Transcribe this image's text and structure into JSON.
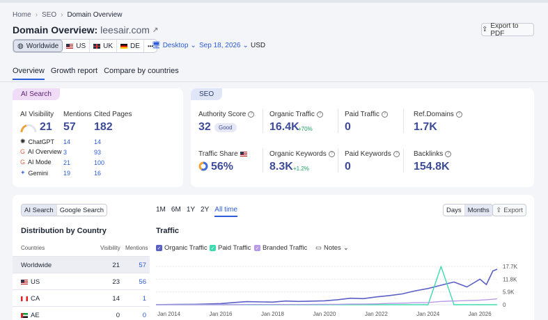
{
  "breadcrumb": [
    "Home",
    "SEO",
    "Domain Overview"
  ],
  "header": {
    "title_prefix": "Domain Overview:",
    "domain": "leesair.com",
    "export_pdf": "Export to PDF"
  },
  "databases": {
    "worldwide": "Worldwide",
    "us": "US",
    "uk": "UK",
    "de": "DE",
    "more": "•••"
  },
  "device": "Desktop",
  "date": "Sep 18, 2026",
  "currency": "USD",
  "tabs": [
    "Overview",
    "Growth report",
    "Compare by countries"
  ],
  "ai_card": {
    "badge": "AI Search",
    "visibility_label": "AI Visibility",
    "visibility_value": "21",
    "mentions_label": "Mentions",
    "mentions_value": "57",
    "cited_label": "Cited Pages",
    "cited_value": "182",
    "platforms": [
      {
        "name": "ChatGPT",
        "mentions": "14",
        "cited": "14"
      },
      {
        "name": "AI Overview",
        "mentions": "3",
        "cited": "93"
      },
      {
        "name": "AI Mode",
        "mentions": "21",
        "cited": "100"
      },
      {
        "name": "Gemini",
        "mentions": "19",
        "cited": "16"
      }
    ]
  },
  "seo_card": {
    "badge": "SEO",
    "authority_label": "Authority Score",
    "authority_value": "32",
    "authority_pill": "Good",
    "organic_traffic_label": "Organic Traffic",
    "organic_traffic_value": "16.4K",
    "organic_traffic_change": "+70%",
    "paid_traffic_label": "Paid Traffic",
    "paid_traffic_value": "0",
    "ref_domains_label": "Ref.Domains",
    "ref_domains_value": "1.7K",
    "traffic_share_label": "Traffic Share",
    "traffic_share_value": "56%",
    "organic_keywords_label": "Organic Keywords",
    "organic_keywords_value": "8.3K",
    "organic_keywords_change": "+1.2%",
    "paid_keywords_label": "Paid Keywords",
    "paid_keywords_value": "0",
    "backlinks_label": "Backlinks",
    "backlinks_value": "154.8K"
  },
  "bottom": {
    "source_toggle": [
      "AI Search",
      "Google Search"
    ],
    "time_ranges": [
      "1M",
      "6M",
      "1Y",
      "2Y",
      "All time"
    ],
    "granularity": [
      "Days",
      "Months"
    ],
    "export": "Export",
    "distribution_title": "Distribution by Country",
    "table_headers": [
      "Countries",
      "Visibility",
      "Mentions"
    ],
    "rows": [
      {
        "country": "Worldwide",
        "visibility": "21",
        "mentions": "57"
      },
      {
        "country": "US",
        "visibility": "23",
        "mentions": "56"
      },
      {
        "country": "CA",
        "visibility": "14",
        "mentions": "1"
      },
      {
        "country": "AE",
        "visibility": "0",
        "mentions": "0"
      }
    ],
    "traffic_title": "Traffic",
    "legend": [
      "Organic Traffic",
      "Paid Traffic",
      "Branded Traffic"
    ],
    "notes": "Notes"
  },
  "colors": {
    "organic": "#5b5fc7",
    "paid": "#3ddbb0",
    "branded": "#b79ae8",
    "accent": "#2b5bd7"
  },
  "chart_data": {
    "type": "line",
    "x_ticks": [
      "Jan 2014",
      "Jan 2016",
      "Jan 2018",
      "Jan 2020",
      "Jan 2022",
      "Jan 2024",
      "Jan 2026"
    ],
    "y_ticks": [
      "17.7K",
      "11.8K",
      "5.9K",
      "0"
    ],
    "ylim": [
      0,
      17700
    ],
    "x": [
      "2013-07",
      "2014-01",
      "2015-01",
      "2016-01",
      "2016-07",
      "2017-01",
      "2018-01",
      "2018-07",
      "2019-01",
      "2020-01",
      "2020-07",
      "2021-01",
      "2021-07",
      "2022-01",
      "2022-07",
      "2023-01",
      "2023-07",
      "2024-01",
      "2024-07",
      "2025-01",
      "2025-07",
      "2026-01",
      "2026-04",
      "2026-07",
      "2026-09"
    ],
    "series": [
      {
        "name": "Organic Traffic",
        "values": [
          0,
          100,
          200,
          500,
          1000,
          1400,
          1200,
          1700,
          1500,
          1800,
          2300,
          3000,
          2800,
          3600,
          4200,
          5000,
          6400,
          7500,
          9000,
          10500,
          8200,
          11800,
          9300,
          15600,
          16400
        ]
      },
      {
        "name": "Paid Traffic",
        "values": [
          0,
          0,
          0,
          0,
          0,
          0,
          0,
          0,
          0,
          0,
          0,
          0,
          0,
          0,
          0,
          0,
          0,
          0,
          17700,
          0,
          0,
          0,
          0,
          0,
          0
        ]
      },
      {
        "name": "Branded Traffic",
        "values": [
          0,
          0,
          0,
          0,
          0,
          100,
          100,
          100,
          100,
          200,
          200,
          300,
          300,
          400,
          600,
          700,
          900,
          1000,
          1500,
          1700,
          1900,
          2100,
          2300,
          2500,
          2700
        ]
      }
    ]
  }
}
